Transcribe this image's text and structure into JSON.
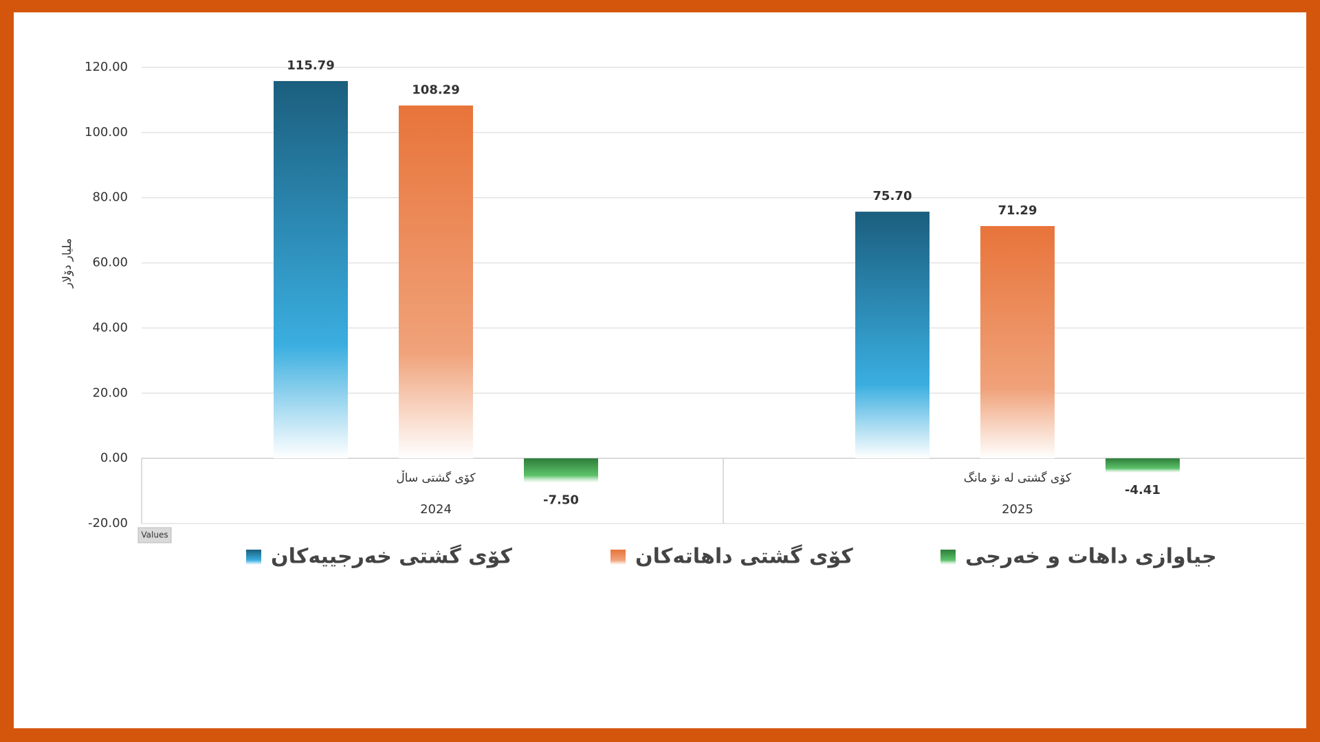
{
  "chart_data": {
    "type": "bar",
    "y_label": "ملیار دۆلار",
    "categories": [
      "2024",
      "2025"
    ],
    "subcategories": [
      "کۆی گشتی ساڵ",
      "کۆی گشتی لە نۆ مانگ"
    ],
    "series": [
      {
        "name": "کۆی گشتی خەرجییەکان",
        "color": "#1b5e7e",
        "mid_color": "#3aaee0",
        "values": [
          115.79,
          75.7
        ],
        "value_labels": [
          "115.79",
          "75.70"
        ]
      },
      {
        "name": "کۆی گشتی داهاتەکان",
        "color": "#e8743a",
        "mid_color": "#f0a27a",
        "values": [
          108.29,
          71.29
        ],
        "value_labels": [
          "108.29",
          "71.29"
        ]
      },
      {
        "name": "جیاوازی داهات و خەرجی",
        "color": "#2e7d3a",
        "mid_color": "#5cc26a",
        "values": [
          -7.5,
          -4.41
        ],
        "value_labels": [
          "-7.50",
          "-4.41"
        ]
      }
    ],
    "ylim": [
      -20,
      120
    ],
    "yticks": [
      {
        "value": -20,
        "label": "-20.00"
      },
      {
        "value": 0,
        "label": "0.00"
      },
      {
        "value": 20,
        "label": "20.00"
      },
      {
        "value": 40,
        "label": "40.00"
      },
      {
        "value": 60,
        "label": "60.00"
      },
      {
        "value": 80,
        "label": "80.00"
      },
      {
        "value": 100,
        "label": "100.00"
      },
      {
        "value": 120,
        "label": "120.00"
      }
    ],
    "grid": true,
    "field_button": "Values"
  }
}
